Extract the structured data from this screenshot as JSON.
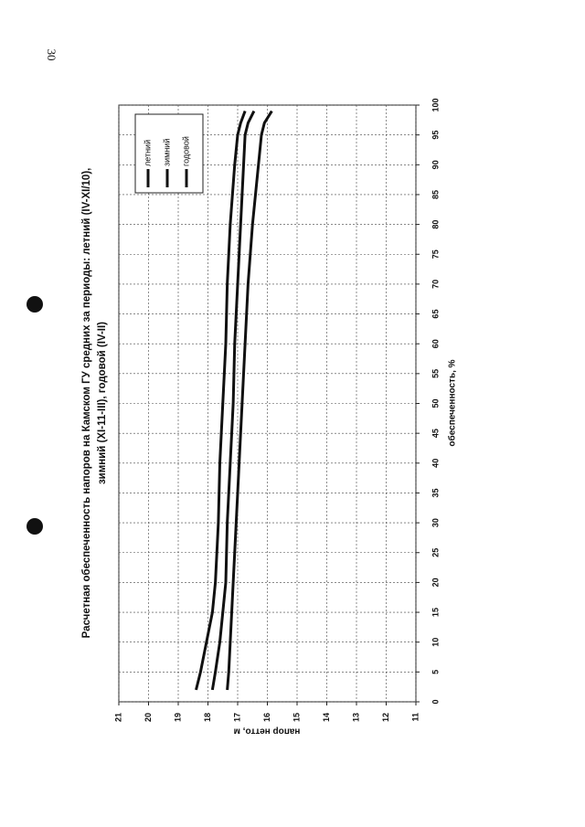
{
  "page_number": "30",
  "chart_data": {
    "type": "line",
    "title": [
      "Расчетная обеспеченность напоров на Камском ГУ средних за периоды: летний (IV-XI/10),",
      "зимний (XI-11-III), годовой (IV-II)"
    ],
    "x_label": "обеспеченность, %",
    "y_label": "напор нетто, м",
    "x": [
      2,
      5,
      10,
      15,
      20,
      30,
      40,
      50,
      60,
      70,
      80,
      90,
      95,
      97,
      99
    ],
    "series": [
      {
        "name": "летний",
        "color": "#111111",
        "values": [
          17.35,
          17.3,
          17.25,
          17.2,
          17.15,
          17.05,
          16.95,
          16.85,
          16.75,
          16.65,
          16.5,
          16.3,
          16.2,
          16.1,
          15.85
        ]
      },
      {
        "name": "зимний",
        "color": "#111111",
        "values": [
          18.4,
          18.25,
          18.05,
          17.85,
          17.75,
          17.65,
          17.6,
          17.5,
          17.4,
          17.35,
          17.25,
          17.1,
          17.0,
          16.9,
          16.75
        ]
      },
      {
        "name": "годовой",
        "color": "#111111",
        "values": [
          17.85,
          17.75,
          17.6,
          17.5,
          17.4,
          17.35,
          17.25,
          17.15,
          17.1,
          17.0,
          16.9,
          16.8,
          16.75,
          16.65,
          16.45
        ]
      }
    ],
    "xlim": [
      0,
      100
    ],
    "xticks": [
      0,
      5,
      10,
      15,
      20,
      25,
      30,
      35,
      40,
      45,
      50,
      55,
      60,
      65,
      70,
      75,
      80,
      85,
      90,
      95,
      100
    ],
    "ylim": [
      11,
      21
    ],
    "yticks": [
      11,
      12,
      13,
      14,
      15,
      16,
      17,
      18,
      19,
      20,
      21
    ],
    "grid": true,
    "legend": "upper-right"
  }
}
